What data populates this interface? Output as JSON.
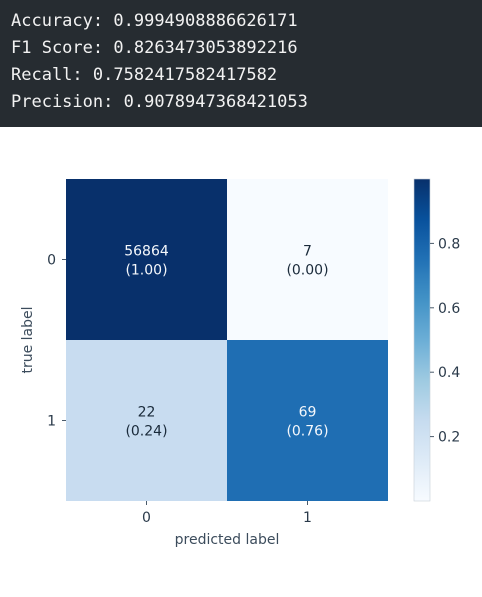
{
  "metrics": [
    {
      "label": "Accuracy",
      "value": "0.9994908886626171"
    },
    {
      "label": "F1 Score",
      "value": "0.8263473053892216"
    },
    {
      "label": "Recall",
      "value": "0.7582417582417582"
    },
    {
      "label": "Precision",
      "value": "0.9078947368421053"
    }
  ],
  "chart_data": {
    "type": "heatmap",
    "title": "",
    "xlabel": "predicted label",
    "ylabel": "true label",
    "x_tick_labels": [
      "0",
      "1"
    ],
    "y_tick_labels": [
      "0",
      "1"
    ],
    "cells": [
      [
        {
          "count": "56864",
          "fraction": "(1.00)",
          "value": 1.0
        },
        {
          "count": "7",
          "fraction": "(0.00)",
          "value": 0.0
        }
      ],
      [
        {
          "count": "22",
          "fraction": "(0.24)",
          "value": 0.24
        },
        {
          "count": "69",
          "fraction": "(0.76)",
          "value": 0.76
        }
      ]
    ],
    "colormap": "Blues",
    "colorbar": {
      "range": [
        0,
        1
      ],
      "ticks": [
        "0.2",
        "0.4",
        "0.6",
        "0.8"
      ],
      "tick_values": [
        0.2,
        0.4,
        0.6,
        0.8
      ]
    },
    "grid": false
  }
}
